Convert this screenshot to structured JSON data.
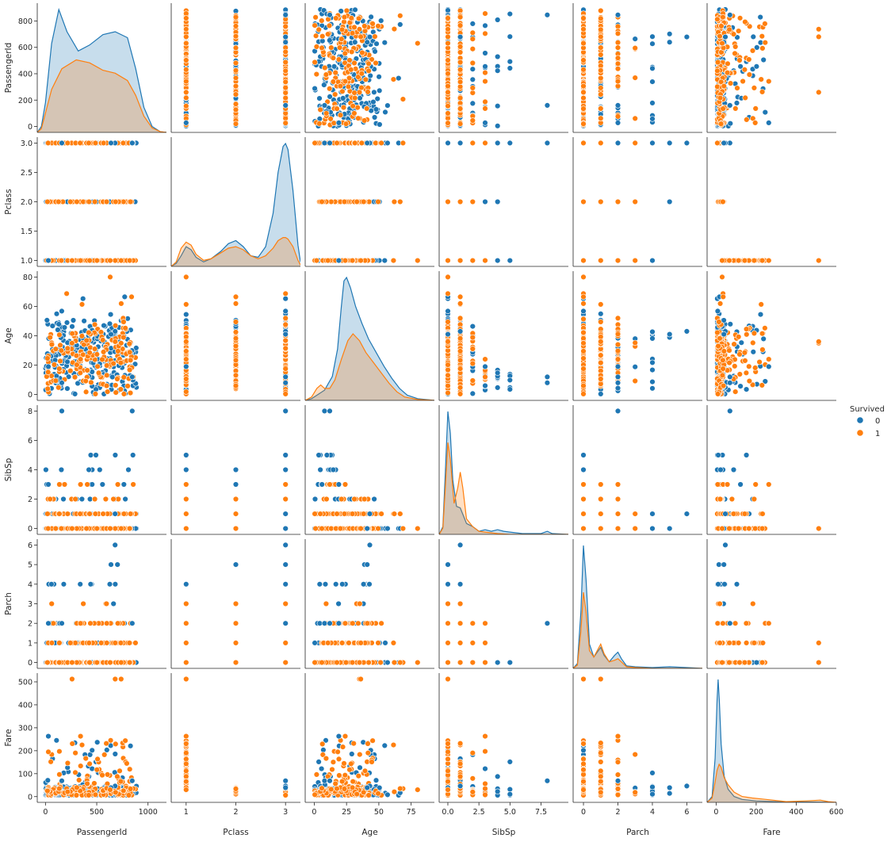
{
  "chart_data": {
    "type": "pairplot",
    "variables": [
      "PassengerId",
      "Pclass",
      "Age",
      "SibSp",
      "Parch",
      "Fare"
    ],
    "axes": {
      "PassengerId": {
        "lim": [
          -80,
          1180
        ],
        "ticks": [
          0,
          500,
          1000
        ],
        "labels": [
          "0",
          "500",
          "1000"
        ],
        "ylim": [
          -45,
          935
        ],
        "yticks": [
          0,
          200,
          400,
          600,
          800
        ],
        "ylabels": [
          "0",
          "200",
          "400",
          "600",
          "800"
        ]
      },
      "Pclass": {
        "lim": [
          0.7,
          3.3
        ],
        "ticks": [
          1,
          2,
          3
        ],
        "labels": [
          "1",
          "2",
          "3"
        ],
        "ylim": [
          0.9,
          3.1
        ],
        "yticks": [
          1.0,
          1.5,
          2.0,
          2.5,
          3.0
        ],
        "ylabels": [
          "1.0",
          "1.5",
          "2.0",
          "2.5",
          "3.0"
        ]
      },
      "Age": {
        "lim": [
          -7,
          93
        ],
        "ticks": [
          0,
          25,
          50,
          75
        ],
        "labels": [
          "0",
          "25",
          "50",
          "75"
        ],
        "ylim": [
          -4,
          84
        ],
        "yticks": [
          0,
          20,
          40,
          60,
          80
        ],
        "ylabels": [
          "0",
          "20",
          "40",
          "60",
          "80"
        ]
      },
      "SibSp": {
        "lim": [
          -0.7,
          9.7
        ],
        "ticks": [
          0.0,
          2.5,
          5.0,
          7.5
        ],
        "labels": [
          "0.0",
          "2.5",
          "5.0",
          "7.5"
        ],
        "ylim": [
          -0.4,
          8.4
        ],
        "yticks": [
          0,
          2,
          4,
          6,
          8
        ],
        "ylabels": [
          "0",
          "2",
          "4",
          "6",
          "8"
        ]
      },
      "Parch": {
        "lim": [
          -0.6,
          6.9
        ],
        "ticks": [
          0,
          2,
          4,
          6
        ],
        "labels": [
          "0",
          "2",
          "4",
          "6"
        ],
        "ylim": [
          -0.3,
          6.3
        ],
        "yticks": [
          0,
          1,
          2,
          3,
          4,
          5,
          6
        ],
        "ylabels": [
          "0",
          "1",
          "2",
          "3",
          "4",
          "5",
          "6"
        ]
      },
      "Fare": {
        "lim": [
          -45,
          600
        ],
        "ticks": [
          0,
          200,
          400,
          600
        ],
        "labels": [
          "0",
          "200",
          "400",
          "600"
        ],
        "ylim": [
          -25,
          538
        ],
        "yticks": [
          0,
          100,
          200,
          300,
          400,
          500
        ],
        "ylabels": [
          "0",
          "100",
          "200",
          "300",
          "400",
          "500"
        ]
      }
    },
    "hue": {
      "title": "Survived",
      "levels": [
        {
          "name": "0",
          "color": "#1f77b4"
        },
        {
          "name": "1",
          "color": "#ff7f0e"
        }
      ]
    },
    "diagonal": "kde",
    "offdiagonal": "scatter",
    "kde_series": {
      "PassengerId": {
        "0": [
          [
            -80,
            0
          ],
          [
            -40,
            8
          ],
          [
            0,
            40
          ],
          [
            60,
            120
          ],
          [
            130,
            166
          ],
          [
            210,
            136
          ],
          [
            320,
            110
          ],
          [
            430,
            118
          ],
          [
            560,
            132
          ],
          [
            680,
            136
          ],
          [
            800,
            128
          ],
          [
            880,
            86
          ],
          [
            960,
            34
          ],
          [
            1040,
            8
          ],
          [
            1120,
            1
          ],
          [
            1180,
            0
          ]
        ],
        "1": [
          [
            -80,
            0
          ],
          [
            -40,
            5
          ],
          [
            0,
            26
          ],
          [
            60,
            58
          ],
          [
            160,
            86
          ],
          [
            300,
            98
          ],
          [
            430,
            94
          ],
          [
            560,
            84
          ],
          [
            680,
            80
          ],
          [
            800,
            70
          ],
          [
            880,
            50
          ],
          [
            960,
            22
          ],
          [
            1040,
            6
          ],
          [
            1120,
            1
          ],
          [
            1180,
            0
          ]
        ]
      },
      "Pclass": {
        "0": [
          [
            0.7,
            0
          ],
          [
            0.8,
            4
          ],
          [
            0.9,
            14
          ],
          [
            1.0,
            26
          ],
          [
            1.1,
            22
          ],
          [
            1.2,
            12
          ],
          [
            1.35,
            6
          ],
          [
            1.5,
            10
          ],
          [
            1.7,
            20
          ],
          [
            1.85,
            30
          ],
          [
            2.0,
            34
          ],
          [
            2.15,
            26
          ],
          [
            2.3,
            14
          ],
          [
            2.45,
            12
          ],
          [
            2.6,
            26
          ],
          [
            2.75,
            70
          ],
          [
            2.85,
            124
          ],
          [
            2.95,
            158
          ],
          [
            3.0,
            162
          ],
          [
            3.05,
            154
          ],
          [
            3.15,
            100
          ],
          [
            3.25,
            28
          ],
          [
            3.3,
            6
          ]
        ],
        "1": [
          [
            0.7,
            0
          ],
          [
            0.8,
            6
          ],
          [
            0.9,
            24
          ],
          [
            1.0,
            32
          ],
          [
            1.1,
            28
          ],
          [
            1.2,
            16
          ],
          [
            1.35,
            8
          ],
          [
            1.5,
            10
          ],
          [
            1.7,
            18
          ],
          [
            1.85,
            24
          ],
          [
            2.0,
            26
          ],
          [
            2.15,
            22
          ],
          [
            2.3,
            14
          ],
          [
            2.45,
            10
          ],
          [
            2.6,
            14
          ],
          [
            2.75,
            24
          ],
          [
            2.85,
            34
          ],
          [
            2.95,
            38
          ],
          [
            3.0,
            38
          ],
          [
            3.05,
            36
          ],
          [
            3.15,
            26
          ],
          [
            3.25,
            8
          ],
          [
            3.3,
            2
          ]
        ]
      },
      "Age": {
        "0": [
          [
            -7,
            0
          ],
          [
            -2,
            2
          ],
          [
            2,
            6
          ],
          [
            8,
            12
          ],
          [
            14,
            28
          ],
          [
            18,
            60
          ],
          [
            21,
            110
          ],
          [
            23,
            140
          ],
          [
            25,
            144
          ],
          [
            28,
            132
          ],
          [
            32,
            110
          ],
          [
            37,
            90
          ],
          [
            42,
            72
          ],
          [
            48,
            56
          ],
          [
            54,
            40
          ],
          [
            60,
            26
          ],
          [
            66,
            14
          ],
          [
            72,
            6
          ],
          [
            80,
            2
          ],
          [
            93,
            0
          ]
        ],
        "1": [
          [
            -7,
            0
          ],
          [
            -2,
            4
          ],
          [
            2,
            14
          ],
          [
            5,
            18
          ],
          [
            8,
            14
          ],
          [
            12,
            14
          ],
          [
            16,
            24
          ],
          [
            21,
            48
          ],
          [
            26,
            70
          ],
          [
            30,
            78
          ],
          [
            35,
            70
          ],
          [
            40,
            56
          ],
          [
            46,
            44
          ],
          [
            52,
            32
          ],
          [
            58,
            20
          ],
          [
            64,
            10
          ],
          [
            70,
            4
          ],
          [
            80,
            1
          ],
          [
            93,
            0
          ]
        ]
      },
      "SibSp": {
        "0": [
          [
            -0.7,
            0
          ],
          [
            -0.4,
            10
          ],
          [
            -0.2,
            80
          ],
          [
            0.0,
            158
          ],
          [
            0.2,
            130
          ],
          [
            0.4,
            70
          ],
          [
            0.7,
            36
          ],
          [
            1.0,
            34
          ],
          [
            1.2,
            26
          ],
          [
            1.5,
            14
          ],
          [
            2.0,
            10
          ],
          [
            2.5,
            4
          ],
          [
            3.0,
            6
          ],
          [
            3.5,
            4
          ],
          [
            4.0,
            6
          ],
          [
            4.5,
            4
          ],
          [
            5.0,
            3
          ],
          [
            6.0,
            1
          ],
          [
            7.5,
            1
          ],
          [
            8.0,
            4
          ],
          [
            8.4,
            1
          ],
          [
            9.7,
            0
          ]
        ],
        "1": [
          [
            -0.7,
            0
          ],
          [
            -0.4,
            8
          ],
          [
            -0.2,
            60
          ],
          [
            0.0,
            118
          ],
          [
            0.2,
            96
          ],
          [
            0.5,
            40
          ],
          [
            0.8,
            60
          ],
          [
            1.0,
            80
          ],
          [
            1.2,
            60
          ],
          [
            1.5,
            20
          ],
          [
            2.0,
            10
          ],
          [
            2.5,
            4
          ],
          [
            3.0,
            3
          ],
          [
            4.0,
            1
          ],
          [
            5.0,
            0
          ],
          [
            9.7,
            0
          ]
        ]
      },
      "Parch": {
        "0": [
          [
            -0.6,
            0
          ],
          [
            -0.35,
            6
          ],
          [
            -0.15,
            70
          ],
          [
            0.0,
            152
          ],
          [
            0.15,
            110
          ],
          [
            0.35,
            30
          ],
          [
            0.6,
            14
          ],
          [
            0.8,
            20
          ],
          [
            1.0,
            26
          ],
          [
            1.2,
            16
          ],
          [
            1.5,
            8
          ],
          [
            1.8,
            16
          ],
          [
            2.0,
            20
          ],
          [
            2.2,
            12
          ],
          [
            2.5,
            3
          ],
          [
            3.0,
            2
          ],
          [
            4.0,
            1
          ],
          [
            5.0,
            2
          ],
          [
            6.0,
            1
          ],
          [
            6.9,
            0
          ]
        ],
        "1": [
          [
            -0.6,
            0
          ],
          [
            -0.35,
            4
          ],
          [
            -0.15,
            46
          ],
          [
            0.0,
            94
          ],
          [
            0.15,
            70
          ],
          [
            0.35,
            22
          ],
          [
            0.6,
            14
          ],
          [
            0.8,
            22
          ],
          [
            1.0,
            30
          ],
          [
            1.2,
            18
          ],
          [
            1.5,
            8
          ],
          [
            1.8,
            10
          ],
          [
            2.0,
            12
          ],
          [
            2.2,
            8
          ],
          [
            2.5,
            2
          ],
          [
            3.0,
            1
          ],
          [
            4.0,
            0
          ],
          [
            6.9,
            0
          ]
        ]
      },
      "Fare": {
        "0": [
          [
            -45,
            0
          ],
          [
            -20,
            8
          ],
          [
            -5,
            60
          ],
          [
            5,
            140
          ],
          [
            10,
            168
          ],
          [
            16,
            140
          ],
          [
            25,
            80
          ],
          [
            40,
            36
          ],
          [
            60,
            18
          ],
          [
            90,
            8
          ],
          [
            130,
            4
          ],
          [
            200,
            2
          ],
          [
            300,
            1
          ],
          [
            600,
            0
          ]
        ],
        "1": [
          [
            -45,
            0
          ],
          [
            -20,
            6
          ],
          [
            -5,
            28
          ],
          [
            5,
            44
          ],
          [
            15,
            52
          ],
          [
            25,
            48
          ],
          [
            40,
            34
          ],
          [
            60,
            24
          ],
          [
            90,
            14
          ],
          [
            130,
            8
          ],
          [
            180,
            6
          ],
          [
            250,
            4
          ],
          [
            350,
            1
          ],
          [
            450,
            2
          ],
          [
            520,
            3
          ],
          [
            560,
            1
          ],
          [
            600,
            0
          ]
        ]
      }
    },
    "x_labels": [
      "PassengerId",
      "Pclass",
      "Age",
      "SibSp",
      "Parch",
      "Fare"
    ],
    "y_labels": [
      "PassengerId",
      "Pclass",
      "Age",
      "SibSp",
      "Parch",
      "Fare"
    ]
  },
  "legend": {
    "title": "Survived",
    "items": [
      {
        "label": "0",
        "color": "#1f77b4"
      },
      {
        "label": "1",
        "color": "#ff7f0e"
      }
    ]
  }
}
